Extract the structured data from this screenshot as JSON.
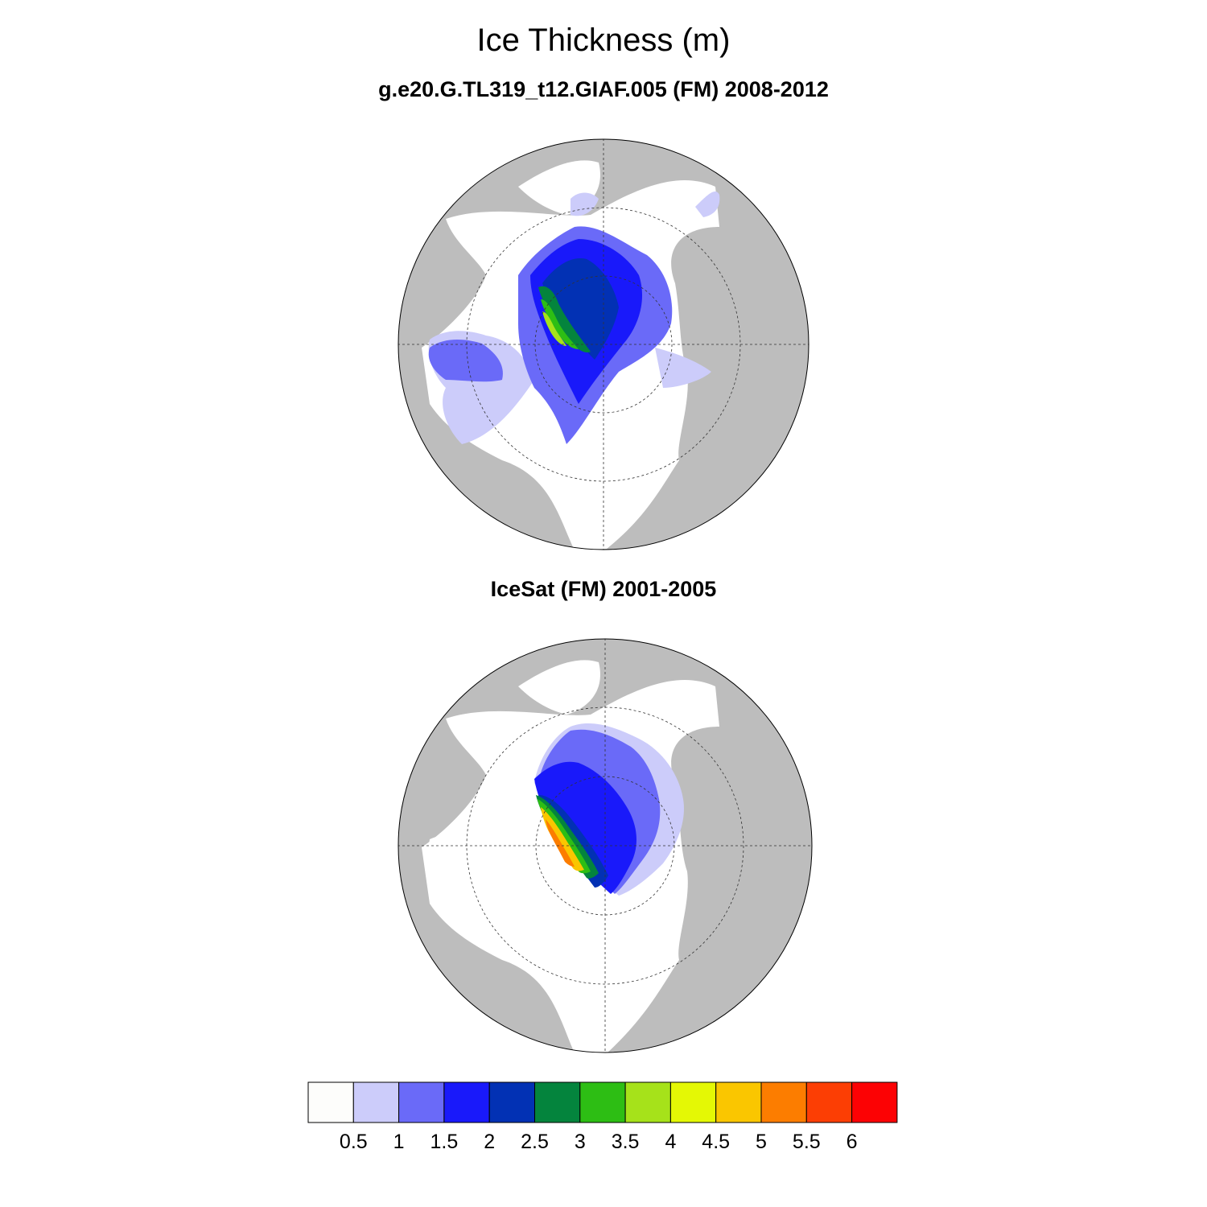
{
  "title": "Ice Thickness (m)",
  "panels": [
    {
      "subtitle": "g.e20.G.TL319_t12.GIAF.005 (FM) 2008-2012"
    },
    {
      "subtitle": "IceSat (FM) 2001-2005"
    }
  ],
  "colorbar": {
    "colors": [
      "#fdfdfb",
      "#ccccfa",
      "#6a6af8",
      "#1919fa",
      "#0231b4",
      "#04843d",
      "#2dbe14",
      "#a6e21a",
      "#e4f805",
      "#fac600",
      "#fc7d00",
      "#fc3e04",
      "#fc0204"
    ],
    "labels": [
      "0.5",
      "1",
      "1.5",
      "2",
      "2.5",
      "3",
      "3.5",
      "4",
      "4.5",
      "5",
      "5.5",
      "6"
    ]
  },
  "map_colors": {
    "land": "#bdbdbd",
    "ocean": "#ffffff"
  }
}
